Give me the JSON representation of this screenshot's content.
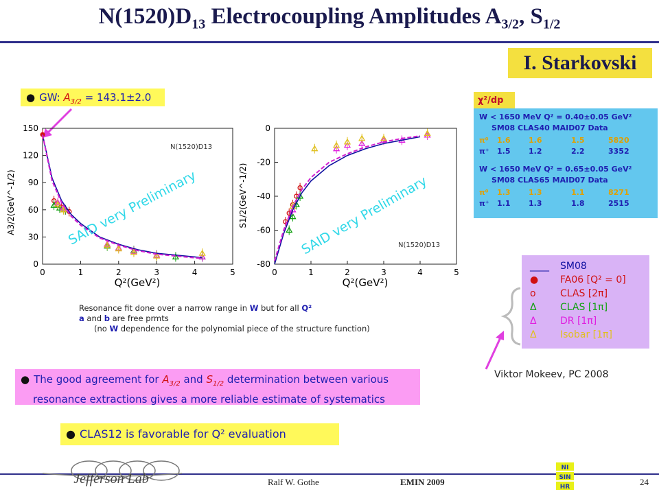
{
  "title": {
    "main": "N(1520)D",
    "sub1": "13",
    "mid": " Electrocoupling Amplitudes A",
    "sub2": "3/2",
    "mid2": ", S",
    "sub3": "1/2"
  },
  "author_label": "I. Starkovski",
  "gw_box": {
    "bullet": "●",
    "prefix": "GW: ",
    "amp": "A",
    "amp_sub": "3/2",
    "value": " = 143.1±2.0"
  },
  "plot_a32": {
    "ylabel": "A3/2(GeV^-1/2)",
    "xlabel": "Q²(GeV²)",
    "state_label": "N(1520)D13",
    "watermark": "SAID very Preliminary",
    "xticks": [
      "0",
      "1",
      "2",
      "3",
      "4",
      "5"
    ],
    "yticks": [
      "0",
      "30",
      "60",
      "90",
      "120",
      "150"
    ]
  },
  "plot_s12": {
    "ylabel": "S1/2(GeV^-1/2)",
    "xlabel": "Q²(GeV²)",
    "state_label": "N(1520)D13",
    "watermark": "SAID very Preliminary",
    "xticks": [
      "0",
      "1",
      "2",
      "3",
      "4",
      "5"
    ],
    "yticks": [
      "-80",
      "-60",
      "-40",
      "-20",
      "0"
    ]
  },
  "chart_data": [
    {
      "type": "scatter",
      "title": "",
      "xlabel": "Q²(GeV²)",
      "ylabel": "A3/2(GeV^-1/2)",
      "xlim": [
        0,
        5
      ],
      "ylim": [
        0,
        150
      ],
      "series": [
        {
          "name": "GW",
          "x": [
            0
          ],
          "y": [
            143.1
          ],
          "marker": "dot",
          "color": "#d01010"
        },
        {
          "name": "CLAS [2π]",
          "x": [
            0.3,
            0.4,
            0.5,
            0.6,
            0.7
          ],
          "y": [
            70,
            66,
            63,
            60,
            58
          ],
          "marker": "circle",
          "color": "#d01010"
        },
        {
          "name": "CLAS [1π]",
          "x": [
            0.3,
            0.45,
            0.6,
            1.7,
            2.4,
            3.0,
            3.5,
            4.2
          ],
          "y": [
            65,
            62,
            60,
            20,
            15,
            10,
            8,
            8
          ],
          "marker": "triangle",
          "color": "#10a010"
        },
        {
          "name": "DR [1π]",
          "x": [
            0.4,
            0.55,
            1.7,
            2.0,
            2.4,
            3.0,
            4.2
          ],
          "y": [
            68,
            62,
            22,
            18,
            14,
            10,
            8
          ],
          "marker": "triangle",
          "color": "#e020e0"
        },
        {
          "name": "Isobar [1π]",
          "x": [
            0.4,
            0.55,
            1.7,
            2.0,
            2.4,
            3.0,
            4.2
          ],
          "y": [
            66,
            60,
            21,
            17,
            13,
            9,
            12
          ],
          "marker": "triangle",
          "color": "#e0c020"
        },
        {
          "name": "SM08",
          "x": [
            0,
            0.25,
            0.5,
            0.75,
            1,
            1.5,
            2,
            2.5,
            3,
            3.5,
            4,
            4.2
          ],
          "y": [
            143,
            95,
            70,
            55,
            45,
            30,
            22,
            16,
            12,
            10,
            8,
            7
          ],
          "style": "line",
          "color": "#1010a0"
        },
        {
          "name": "FA06",
          "x": [
            0,
            0.25,
            0.5,
            0.75,
            1,
            1.5,
            2,
            2.5,
            3,
            3.5,
            4,
            4.2
          ],
          "y": [
            143,
            92,
            68,
            53,
            43,
            29,
            21,
            15,
            11,
            9,
            7,
            6.5
          ],
          "style": "dashed",
          "color": "#d020d0"
        }
      ]
    },
    {
      "type": "scatter",
      "title": "",
      "xlabel": "Q²(GeV²)",
      "ylabel": "S1/2(GeV^-1/2)",
      "xlim": [
        0,
        5
      ],
      "ylim": [
        -80,
        0
      ],
      "series": [
        {
          "name": "CLAS [2π]",
          "x": [
            0.3,
            0.4,
            0.5,
            0.6,
            0.7
          ],
          "y": [
            -55,
            -50,
            -45,
            -40,
            -35
          ],
          "marker": "circle",
          "color": "#d01010"
        },
        {
          "name": "CLAS [1π]",
          "x": [
            0.4,
            0.5,
            0.6,
            0.7
          ],
          "y": [
            -60,
            -52,
            -45,
            -40
          ],
          "marker": "triangle",
          "color": "#10a010"
        },
        {
          "name": "DR [1π]",
          "x": [
            0.5,
            1.7,
            2.0,
            2.4,
            3.0,
            3.5,
            4.2
          ],
          "y": [
            -48,
            -12,
            -10,
            -9,
            -7,
            -7,
            -4
          ],
          "marker": "triangle",
          "color": "#e020e0"
        },
        {
          "name": "Isobar [1π]",
          "x": [
            0.5,
            1.1,
            1.7,
            2.0,
            2.4,
            3.0,
            4.2
          ],
          "y": [
            -46,
            -12,
            -10,
            -8,
            -6,
            -6,
            -3
          ],
          "marker": "triangle",
          "color": "#e0c020"
        },
        {
          "name": "SM08",
          "x": [
            0,
            0.25,
            0.5,
            0.75,
            1,
            1.5,
            2,
            2.5,
            3,
            3.5,
            4
          ],
          "y": [
            -80,
            -62,
            -48,
            -38,
            -31,
            -22,
            -16,
            -12,
            -9,
            -7,
            -5
          ],
          "style": "line",
          "color": "#1010a0"
        },
        {
          "name": "FA06",
          "x": [
            0,
            0.25,
            0.5,
            0.75,
            1,
            1.5,
            2,
            2.5,
            3,
            3.5,
            4
          ],
          "y": [
            -78,
            -60,
            -46,
            -36,
            -29,
            -20,
            -15,
            -11,
            -8,
            -6,
            -4.5
          ],
          "style": "dashed",
          "color": "#d020d0"
        }
      ]
    }
  ],
  "notes": {
    "line1a": "Resonance fit done over a narrow range in ",
    "line1b": "W",
    "line1c": " but for all ",
    "line1d": "Q²",
    "line2a": "a",
    "line2b": " and ",
    "line2c": "b",
    "line2d": " are free prmts",
    "line3a": "(no ",
    "line3b": "W",
    "line3c": " dependence for the polynomial piece of the structure function)"
  },
  "agree_box": {
    "bullet": "●",
    "l1a": "The good agreement for ",
    "l1b": "A",
    "l1b_sub": "3/2",
    "l1c": " and ",
    "l1d": "S",
    "l1d_sub": "1/2",
    "l1e": " determination between various",
    "l2": "resonance extractions gives a more reliable estimate of systematics"
  },
  "clas_box": {
    "bullet": "●",
    "text": "CLAS12 is favorable for Q² evaluation"
  },
  "chi_box": {
    "tab": "χ²/dp",
    "line1": "W < 1650 MeV  Q² = 0.40±0.05 GeV²",
    "hdr1": "SM08  CLAS40  MAID07  Data",
    "rows1": [
      {
        "label": "π⁰",
        "v": [
          "1.6",
          "1.6",
          "1.5",
          "5820"
        ],
        "color": "#e0a000"
      },
      {
        "label": "π⁺",
        "v": [
          "1.5",
          "1.2",
          "2.2",
          "3352"
        ],
        "color": "#1f1fb0"
      }
    ],
    "line2": "W < 1650 MeV  Q² = 0.65±0.05 GeV²",
    "hdr2": "SM08  CLAS65  MAID07  Data",
    "rows2": [
      {
        "label": "π⁰",
        "v": [
          "1.3",
          "1.3",
          "1.1",
          "8271"
        ],
        "color": "#e0a000"
      },
      {
        "label": "π⁺",
        "v": [
          "1.1",
          "1.3",
          "1.8",
          "2515"
        ],
        "color": "#1f1fb0"
      }
    ]
  },
  "legend": [
    {
      "sym": "____",
      "text": "SM08",
      "color": "#1010a0"
    },
    {
      "sym": "●",
      "text": "FA06  [Q² = 0]",
      "color": "#d01010"
    },
    {
      "sym": "o",
      "text": "CLAS  [2π]",
      "color": "#d01010"
    },
    {
      "sym": "Δ",
      "text": "CLAS  [1π]",
      "color": "#10a010"
    },
    {
      "sym": "Δ",
      "text": "DR     [1π]",
      "color": "#e020e0"
    },
    {
      "sym": "Δ",
      "text": "Isobar [1π]",
      "color": "#e0c020"
    }
  ],
  "mokeev": "Viktor Mokeev, PC 2008",
  "footer": {
    "author": "Ralf  W. Gothe",
    "conference": "EMIN 2009",
    "page": "24"
  },
  "logos": {
    "jlab": "Jefferson Lab",
    "ni": "NI SIN HR"
  }
}
